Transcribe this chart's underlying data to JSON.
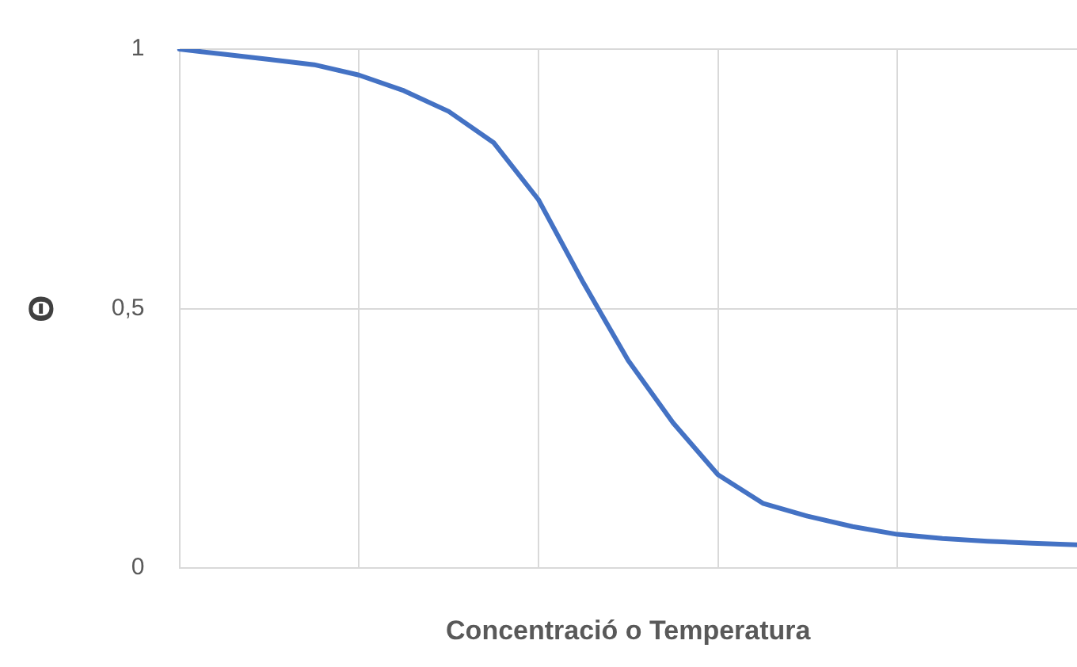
{
  "chart_data": {
    "type": "line",
    "xlabel": "Concentració o Temperatura",
    "ylabel": "Θ",
    "categories": [
      null,
      null,
      null,
      null,
      null,
      null,
      null,
      null,
      null,
      null,
      null,
      null,
      null,
      null,
      null,
      null,
      null,
      null,
      null,
      null,
      null
    ],
    "series": [
      {
        "color": "#4472c4",
        "values": [
          1,
          0.99,
          0.98,
          0.97,
          0.95,
          0.92,
          0.88,
          0.82,
          0.71,
          0.55,
          0.4,
          0.28,
          0.18,
          0.125,
          0.1,
          0.08,
          0.065,
          0.057,
          0.052,
          0.048,
          0.045
        ]
      }
    ],
    "ylim": [
      0,
      1
    ],
    "yticks": [
      0,
      {
        "value": 0.5,
        "label": "0,5"
      },
      1
    ],
    "tick_labels": "y",
    "grid": true,
    "legend": false,
    "marker": "none",
    "line_style": "solid"
  }
}
